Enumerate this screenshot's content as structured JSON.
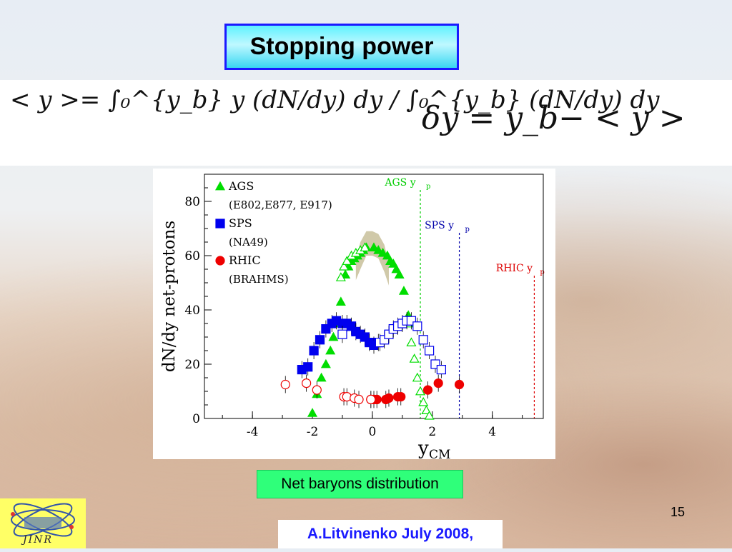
{
  "slide": {
    "title": "Stopping power",
    "formula_mean": "< y >= ∫₀^{y_b} y (dN/dy) dy / ∫₀^{y_b} (dN/dy) dy",
    "formula_delta": "δy = y_b− < y >",
    "caption": "Net baryons distribution",
    "page_number": "15",
    "author": "A.Litvinenko July  2008,",
    "logo_text": "JINR"
  },
  "chart_data": {
    "type": "scatter",
    "xlabel": "y",
    "xlabel_sub": "CM",
    "ylabel": "dN/dy net-protons",
    "xlim": [
      -5.6,
      5.7
    ],
    "ylim": [
      0,
      90
    ],
    "x_ticks": [
      -4,
      -2,
      0,
      2,
      4
    ],
    "y_ticks": [
      0,
      20,
      40,
      60,
      80
    ],
    "legend": [
      {
        "name": "AGS",
        "sub": "(E802,E877, E917)",
        "color": "#00dd00",
        "marker": "triangle"
      },
      {
        "name": "SPS",
        "sub": "(NA49)",
        "color": "#0000ee",
        "marker": "square"
      },
      {
        "name": "RHIC",
        "sub": "(BRAHMS)",
        "color": "#ee0000",
        "marker": "circle"
      }
    ],
    "beam_lines": [
      {
        "label": "AGS y",
        "sub": "p",
        "x": 1.6,
        "color": "#00cc00"
      },
      {
        "label": "SPS y",
        "sub": "p",
        "x": 2.9,
        "color": "#0000aa"
      },
      {
        "label": "RHIC y",
        "sub": "p",
        "x": 5.4,
        "color": "#dd0000"
      }
    ],
    "band": {
      "x": [
        -0.55,
        -0.4,
        -0.2,
        0.0,
        0.2,
        0.4,
        0.55
      ],
      "upper": [
        58,
        65,
        69,
        69,
        68,
        64,
        57
      ],
      "lower": [
        51,
        55,
        60,
        60,
        59,
        54,
        49
      ]
    },
    "series": [
      {
        "name": "AGS",
        "color": "#00dd00",
        "marker": "triangle",
        "filled": true,
        "x": [
          -2.0,
          -1.85,
          -1.7,
          -1.55,
          -1.4,
          -1.3,
          -1.2,
          -1.05,
          -0.9,
          -0.8,
          -0.7,
          -0.6,
          -0.5,
          -0.4,
          -0.3,
          -0.2,
          0.05,
          0.2,
          0.35,
          0.5,
          0.6,
          0.7,
          0.8,
          0.9,
          1.05,
          1.2
        ],
        "y": [
          2,
          9,
          15,
          20,
          25,
          30,
          35,
          43,
          53,
          56,
          58,
          59,
          60,
          61,
          62,
          63,
          63,
          62,
          61,
          60,
          58,
          57,
          55,
          53,
          47,
          38
        ]
      },
      {
        "name": "AGS (reflected)",
        "color": "#00dd00",
        "marker": "triangle",
        "filled": false,
        "x": [
          -1.05,
          -0.95,
          -0.85,
          -0.7,
          -0.55,
          -0.4,
          -0.25,
          1.2,
          1.3,
          1.4,
          1.5,
          1.6,
          1.7,
          1.8,
          1.9
        ],
        "y": [
          52,
          56,
          58,
          60,
          61,
          62,
          63,
          35,
          28,
          22,
          15,
          10,
          6,
          3,
          1
        ]
      },
      {
        "name": "SPS",
        "color": "#0000ee",
        "marker": "square",
        "filled": true,
        "x": [
          -2.35,
          -2.15,
          -1.95,
          -1.75,
          -1.55,
          -1.35,
          -1.2,
          -1.0,
          -0.85,
          -0.7,
          -0.55,
          -0.4,
          -0.25,
          -0.1,
          0.05,
          0.2
        ],
        "y": [
          18,
          19,
          25,
          29,
          33,
          35,
          36,
          35,
          35,
          34,
          32,
          31,
          30,
          28,
          27,
          28
        ]
      },
      {
        "name": "SPS (reflected)",
        "color": "#0000ee",
        "marker": "square",
        "filled": false,
        "x": [
          -1.0,
          0.25,
          0.4,
          0.55,
          0.7,
          0.85,
          1.0,
          1.15,
          1.3,
          1.5,
          1.7,
          1.9,
          2.1,
          2.3
        ],
        "y": [
          31,
          28,
          29,
          31,
          33,
          34,
          35,
          36,
          36,
          34,
          29,
          25,
          20,
          18
        ]
      },
      {
        "name": "RHIC",
        "color": "#ee0000",
        "marker": "circle",
        "filled": true,
        "x": [
          -0.05,
          0.05,
          0.15,
          0.45,
          0.55,
          0.85,
          0.95,
          1.85,
          2.2,
          2.9
        ],
        "y": [
          7,
          7,
          7,
          7,
          7.5,
          8,
          8,
          10.5,
          13,
          12.5
        ]
      },
      {
        "name": "RHIC (reflected)",
        "color": "#ee0000",
        "marker": "circle",
        "filled": false,
        "x": [
          -2.9,
          -2.2,
          -1.85,
          -0.95,
          -0.85,
          -0.6,
          -0.45,
          -0.05
        ],
        "y": [
          12.5,
          13,
          10.5,
          8,
          8,
          7.5,
          7,
          7
        ]
      }
    ]
  }
}
